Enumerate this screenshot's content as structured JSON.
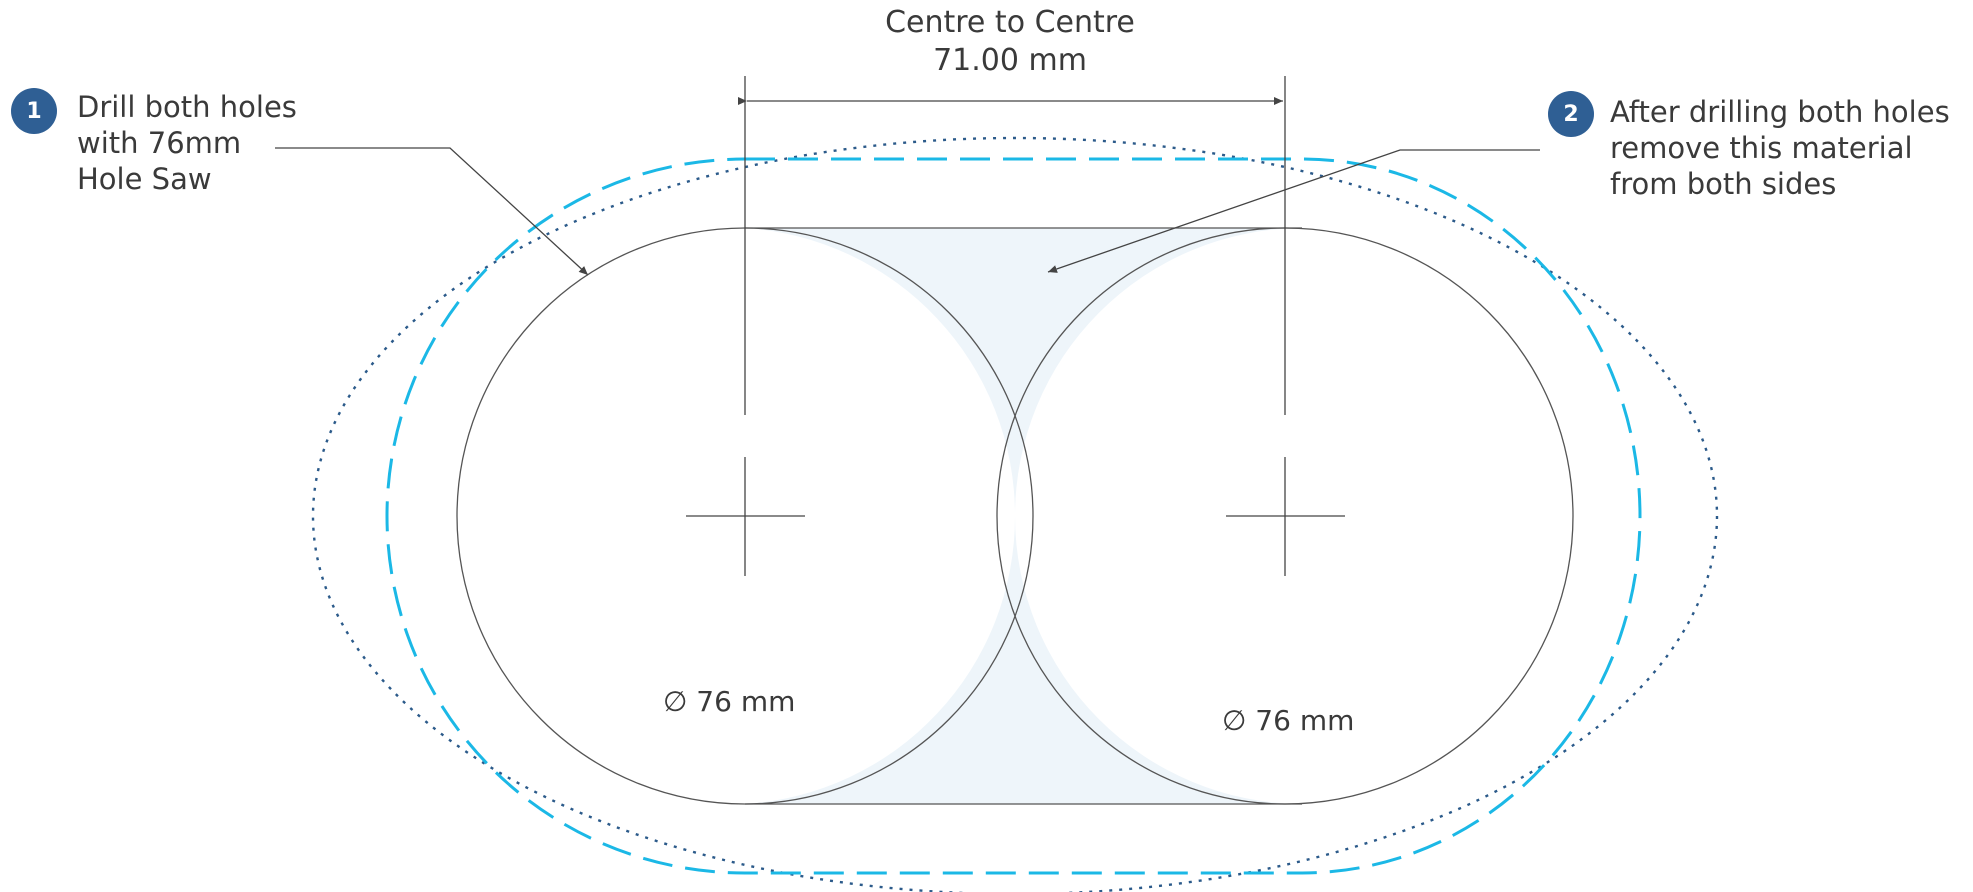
{
  "dimension": {
    "label_line1": "Centre to Centre",
    "label_line2": "71.00 mm"
  },
  "steps": [
    {
      "number": "1",
      "lines": [
        "Drill both holes",
        "with 76mm",
        "Hole Saw"
      ]
    },
    {
      "number": "2",
      "lines": [
        "After drilling both holes",
        "remove this material",
        "from both sides"
      ]
    }
  ],
  "holes": [
    {
      "diameter_symbol": "∅",
      "diameter_label": "76 mm"
    },
    {
      "diameter_symbol": "∅",
      "diameter_label": "76 mm"
    }
  ],
  "colors": {
    "badge": "#2f5f94",
    "dashed_outline": "#1bb8e6",
    "dotted_outline": "#2b5a8a",
    "removed_material_fill": "#eef5fa",
    "lines": "#444444"
  }
}
